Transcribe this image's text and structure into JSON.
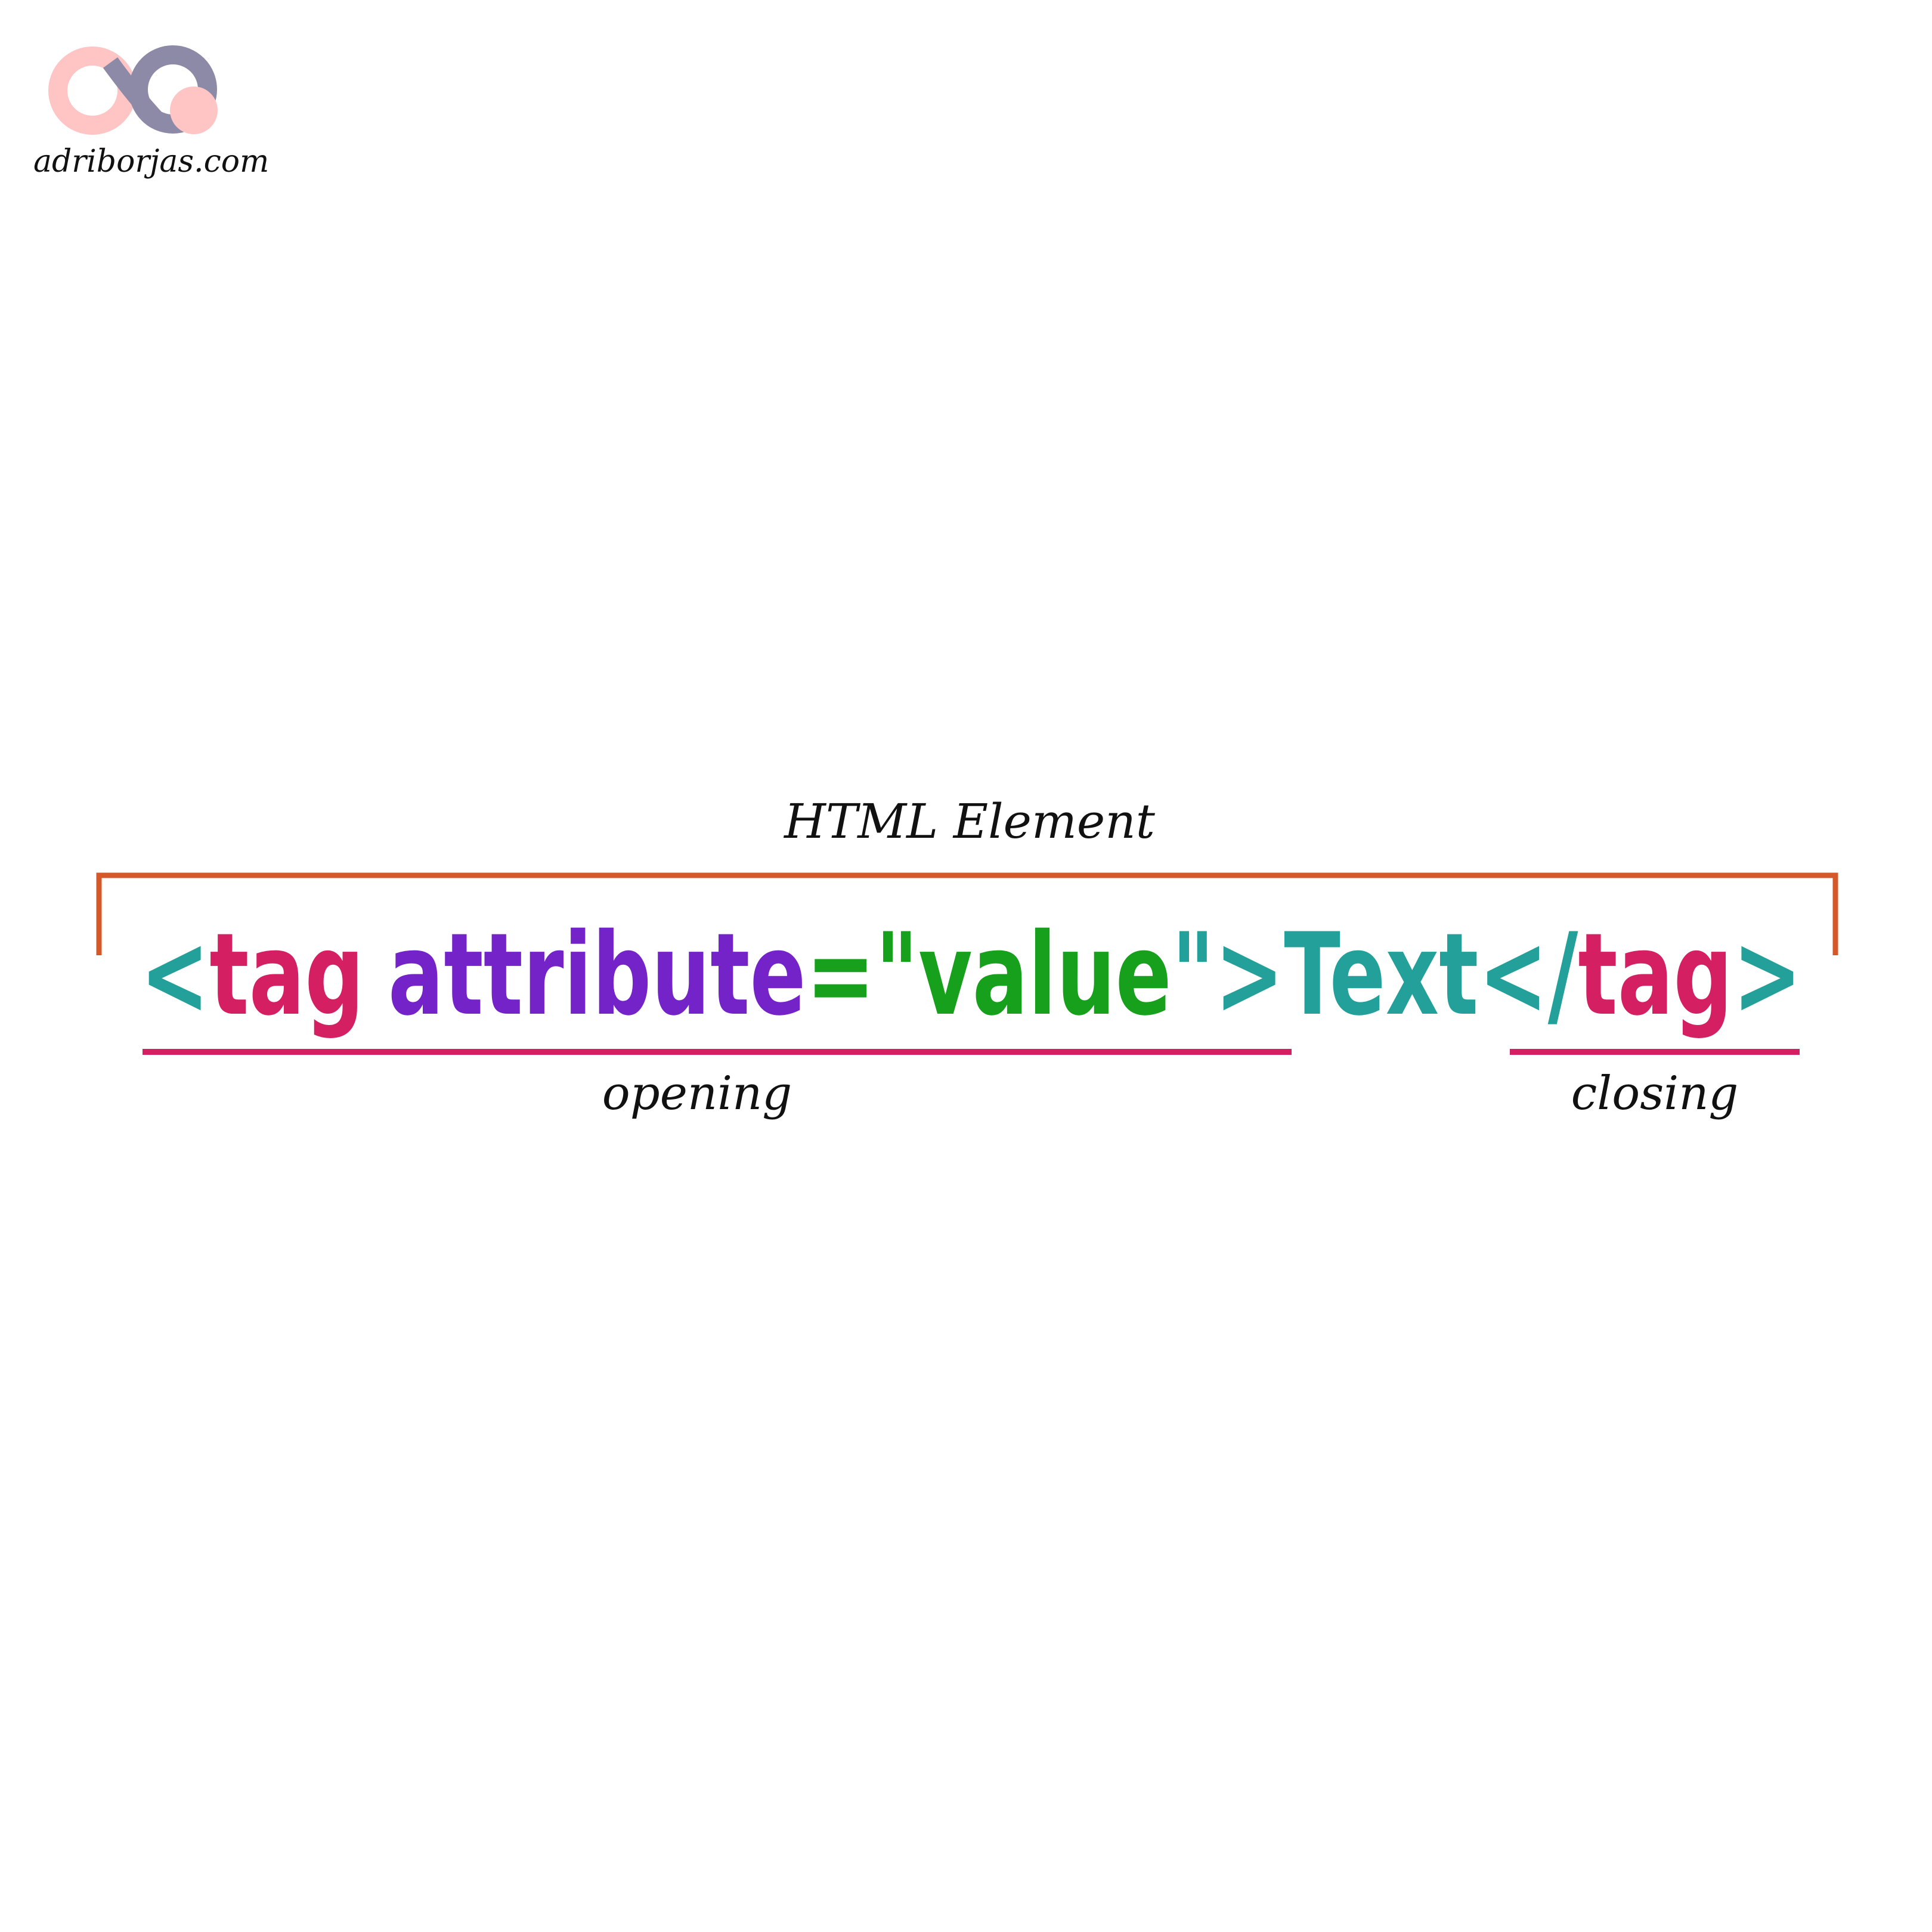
{
  "brand": "adriborjas.com",
  "title": "HTML Element",
  "code": [
    "<",
    "tag",
    "attribute",
    "=\"",
    "value",
    "\">",
    "Text",
    "</",
    "tag",
    ">"
  ],
  "labels": {
    "opening": "opening",
    "closing": "closing"
  }
}
